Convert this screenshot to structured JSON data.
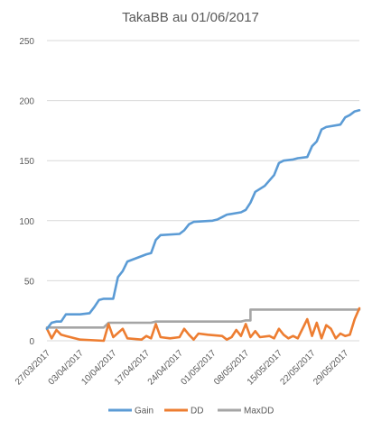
{
  "chart_data": {
    "type": "line",
    "title": "TakaBB au 01/06/2017",
    "xlabel": "",
    "ylabel": "",
    "ylim": [
      0,
      250
    ],
    "yticks": [
      0,
      50,
      100,
      150,
      200,
      250
    ],
    "xticks": [
      "27/03/2017",
      "03/04/2017",
      "10/04/2017",
      "17/04/2017",
      "24/04/2017",
      "01/05/2017",
      "08/05/2017",
      "15/05/2017",
      "22/05/2017",
      "29/05/2017"
    ],
    "grid": "horizontal",
    "legend_position": "bottom",
    "colors": {
      "Gain": "#5b9bd5",
      "DD": "#ed7d31",
      "MaxDD": "#a5a5a5"
    },
    "series": [
      {
        "name": "Gain",
        "points": [
          [
            "27/03/2017",
            10
          ],
          [
            "28/03/2017",
            15
          ],
          [
            "29/03/2017",
            16
          ],
          [
            "30/03/2017",
            16
          ],
          [
            "31/03/2017",
            22
          ],
          [
            "03/04/2017",
            22
          ],
          [
            "05/04/2017",
            23
          ],
          [
            "06/04/2017",
            28
          ],
          [
            "07/04/2017",
            34
          ],
          [
            "08/04/2017",
            35
          ],
          [
            "10/04/2017",
            35
          ],
          [
            "11/04/2017",
            53
          ],
          [
            "12/04/2017",
            58
          ],
          [
            "13/04/2017",
            66
          ],
          [
            "17/04/2017",
            72
          ],
          [
            "18/04/2017",
            73
          ],
          [
            "19/04/2017",
            84
          ],
          [
            "20/04/2017",
            88
          ],
          [
            "24/04/2017",
            89
          ],
          [
            "25/04/2017",
            92
          ],
          [
            "26/04/2017",
            97
          ],
          [
            "27/04/2017",
            99
          ],
          [
            "01/05/2017",
            100
          ],
          [
            "02/05/2017",
            101
          ],
          [
            "03/05/2017",
            103
          ],
          [
            "04/05/2017",
            105
          ],
          [
            "07/05/2017",
            107
          ],
          [
            "08/05/2017",
            109
          ],
          [
            "09/05/2017",
            115
          ],
          [
            "10/05/2017",
            124
          ],
          [
            "12/05/2017",
            129
          ],
          [
            "14/05/2017",
            138
          ],
          [
            "15/05/2017",
            148
          ],
          [
            "16/05/2017",
            150
          ],
          [
            "18/05/2017",
            151
          ],
          [
            "19/05/2017",
            152
          ],
          [
            "21/05/2017",
            153
          ],
          [
            "22/05/2017",
            162
          ],
          [
            "23/05/2017",
            166
          ],
          [
            "24/05/2017",
            176
          ],
          [
            "25/05/2017",
            178
          ],
          [
            "28/05/2017",
            180
          ],
          [
            "29/05/2017",
            186
          ],
          [
            "30/05/2017",
            188
          ],
          [
            "31/05/2017",
            191
          ],
          [
            "01/06/2017",
            192
          ]
        ]
      },
      {
        "name": "DD",
        "points": [
          [
            "27/03/2017",
            10
          ],
          [
            "28/03/2017",
            2
          ],
          [
            "29/03/2017",
            9
          ],
          [
            "30/03/2017",
            5
          ],
          [
            "31/03/2017",
            4
          ],
          [
            "03/04/2017",
            1
          ],
          [
            "08/04/2017",
            0
          ],
          [
            "09/04/2017",
            14
          ],
          [
            "10/04/2017",
            3
          ],
          [
            "12/04/2017",
            10
          ],
          [
            "13/04/2017",
            2
          ],
          [
            "16/04/2017",
            1
          ],
          [
            "17/04/2017",
            4
          ],
          [
            "18/04/2017",
            2
          ],
          [
            "19/04/2017",
            14
          ],
          [
            "20/04/2017",
            3
          ],
          [
            "22/04/2017",
            2
          ],
          [
            "24/04/2017",
            3
          ],
          [
            "25/04/2017",
            10
          ],
          [
            "26/04/2017",
            5
          ],
          [
            "27/04/2017",
            1
          ],
          [
            "28/04/2017",
            6
          ],
          [
            "30/04/2017",
            5
          ],
          [
            "03/05/2017",
            4
          ],
          [
            "04/05/2017",
            1
          ],
          [
            "05/05/2017",
            3
          ],
          [
            "06/05/2017",
            9
          ],
          [
            "07/05/2017",
            4
          ],
          [
            "08/05/2017",
            14
          ],
          [
            "09/05/2017",
            3
          ],
          [
            "10/05/2017",
            8
          ],
          [
            "11/05/2017",
            3
          ],
          [
            "13/05/2017",
            4
          ],
          [
            "14/05/2017",
            2
          ],
          [
            "15/05/2017",
            10
          ],
          [
            "16/05/2017",
            5
          ],
          [
            "17/05/2017",
            2
          ],
          [
            "18/05/2017",
            4
          ],
          [
            "19/05/2017",
            2
          ],
          [
            "21/05/2017",
            18
          ],
          [
            "22/05/2017",
            4
          ],
          [
            "23/05/2017",
            15
          ],
          [
            "24/05/2017",
            2
          ],
          [
            "25/05/2017",
            13
          ],
          [
            "26/05/2017",
            10
          ],
          [
            "27/05/2017",
            2
          ],
          [
            "28/05/2017",
            6
          ],
          [
            "29/05/2017",
            4
          ],
          [
            "30/05/2017",
            5
          ],
          [
            "31/05/2017",
            18
          ],
          [
            "01/06/2017",
            27
          ]
        ]
      },
      {
        "name": "MaxDD",
        "points": [
          [
            "27/03/2017",
            11
          ],
          [
            "08/04/2017",
            11
          ],
          [
            "09/04/2017",
            15
          ],
          [
            "18/04/2017",
            15
          ],
          [
            "19/04/2017",
            16
          ],
          [
            "07/05/2017",
            16
          ],
          [
            "08/05/2017",
            17
          ],
          [
            "09/05/2017",
            17
          ],
          [
            "09/05/2017",
            26
          ],
          [
            "01/06/2017",
            26
          ]
        ]
      }
    ]
  }
}
